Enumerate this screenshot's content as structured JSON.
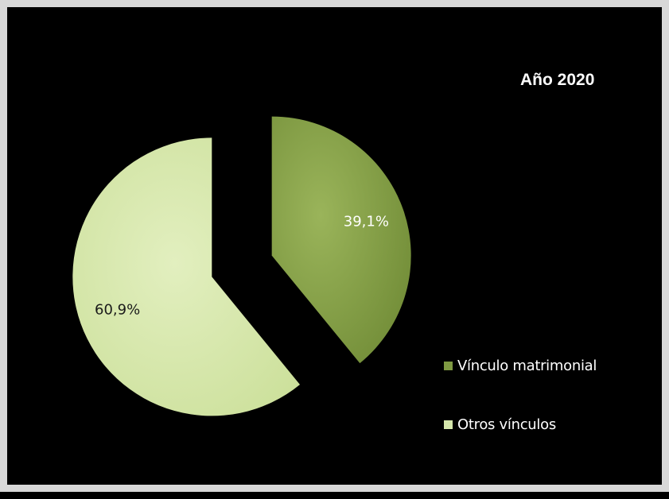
{
  "chart_data": {
    "type": "pie",
    "title": "Año 2020",
    "categories": [
      "Vínculo matrimonial",
      "Otros vínculos"
    ],
    "values": [
      39.1,
      60.9
    ],
    "data_labels": [
      "39,1%",
      "60,9%"
    ],
    "colors": [
      "#7f9a42",
      "#d6e7ac"
    ],
    "exploded": true,
    "legend_position": "right"
  }
}
